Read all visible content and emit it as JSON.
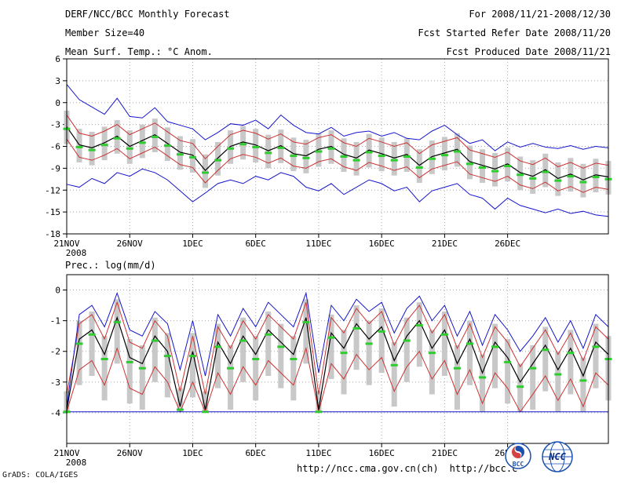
{
  "header": {
    "line1_left": "DERF/NCC/BCC Monthly Forecast",
    "line1_right": "For 2008/11/21-2008/12/30",
    "line2_left": "Member Size=40",
    "line2_right": "Fcst Started Refer Date 2008/11/20",
    "line3_left": "Mean Surf. Temp.: °C Anom.",
    "line3_right": "Fcst Produced Date 2008/11/21"
  },
  "footer": {
    "grads_credit": "GrADS: COLA/IGES",
    "url_ncc": "http://ncc.cma.gov.cn(ch)",
    "url_bcc": "http://bcc.c",
    "bcc_logo_label": "BCC",
    "ncc_logo_label": "NCC"
  },
  "colors": {
    "max_min_line": "#1515cc",
    "quartile_line": "#cc3333",
    "mean_line": "#000000",
    "median_dash": "#2ecc2e",
    "spread_bar": "#c8c8c8",
    "grid": "#a8a8a8",
    "frame": "#000000",
    "logo_blue": "#1a50b0",
    "logo_red": "#cc2222"
  },
  "chart_data": [
    {
      "type": "line",
      "title": "Mean Surf. Temp.: °C Anom.",
      "x_tick_labels": [
        "21NOV",
        "26NOV",
        "1DEC",
        "6DEC",
        "11DEC",
        "16DEC",
        "21DEC",
        "26DEC"
      ],
      "x_tick_days": [
        0,
        5,
        10,
        15,
        20,
        25,
        30,
        35
      ],
      "x_first_sublabel": "2008",
      "n_points": 44,
      "ylim": [
        6,
        -18
      ],
      "yticks": [
        6,
        3,
        0,
        -3,
        -6,
        -9,
        -12,
        -15,
        -18
      ],
      "series": {
        "max": [
          2.5,
          0.4,
          -0.6,
          -1.6,
          0.6,
          -1.9,
          -2.1,
          -0.7,
          -2.6,
          -3.1,
          -3.6,
          -5.1,
          -4.1,
          -2.9,
          -3.1,
          -2.4,
          -3.6,
          -1.7,
          -3.1,
          -4.1,
          -4.3,
          -3.4,
          -4.6,
          -4.1,
          -3.9,
          -4.6,
          -4.1,
          -4.9,
          -5.1,
          -3.9,
          -3.1,
          -4.4,
          -5.6,
          -5.1,
          -6.6,
          -5.4,
          -6.1,
          -5.6,
          -6.1,
          -6.3,
          -5.9,
          -6.4,
          -6.0,
          -6.2
        ],
        "mean": [
          -3.3,
          -5.8,
          -6.2,
          -5.5,
          -4.6,
          -6.0,
          -5.2,
          -4.4,
          -5.6,
          -6.8,
          -7.2,
          -9.3,
          -7.6,
          -6.0,
          -5.4,
          -5.8,
          -6.6,
          -5.9,
          -7.0,
          -7.3,
          -6.4,
          -6.0,
          -7.1,
          -7.6,
          -6.5,
          -7.0,
          -7.6,
          -7.1,
          -8.6,
          -7.4,
          -6.9,
          -6.4,
          -8.1,
          -8.6,
          -9.1,
          -8.4,
          -9.6,
          -10.1,
          -9.2,
          -10.4,
          -9.8,
          -10.6,
          -9.9,
          -10.2
        ],
        "median": [
          -3.6,
          -6.1,
          -6.5,
          -5.8,
          -4.9,
          -6.3,
          -5.5,
          -4.7,
          -5.9,
          -7.1,
          -7.5,
          -9.6,
          -7.9,
          -6.3,
          -5.7,
          -6.1,
          -6.9,
          -6.2,
          -7.3,
          -7.6,
          -6.7,
          -6.3,
          -7.4,
          -7.9,
          -6.8,
          -7.3,
          -7.9,
          -7.4,
          -8.9,
          -7.7,
          -7.2,
          -6.7,
          -8.4,
          -8.9,
          -9.4,
          -8.7,
          -9.9,
          -10.4,
          -9.5,
          -10.7,
          -10.1,
          -10.9,
          -10.2,
          -10.5
        ],
        "min": [
          -11.2,
          -11.6,
          -10.4,
          -11.1,
          -9.6,
          -10.1,
          -9.1,
          -9.6,
          -10.6,
          -12.1,
          -13.6,
          -12.4,
          -11.1,
          -10.6,
          -11.1,
          -10.1,
          -10.6,
          -9.6,
          -10.1,
          -11.6,
          -12.1,
          -11.1,
          -12.6,
          -11.6,
          -10.6,
          -11.1,
          -12.1,
          -11.6,
          -13.6,
          -12.1,
          -11.6,
          -11.1,
          -12.6,
          -13.1,
          -14.6,
          -13.1,
          -14.1,
          -14.6,
          -15.1,
          -14.6,
          -15.2,
          -14.9,
          -15.4,
          -15.6
        ]
      },
      "bands": {
        "p75_offset": 1.6,
        "p25_offset": -1.7,
        "bar_high_offset": 2.2,
        "bar_low_offset": -2.4
      }
    },
    {
      "type": "line",
      "title": "Prec.: log(mm/d)",
      "x_tick_labels": [
        "21NOV",
        "26NOV",
        "1DEC",
        "6DEC",
        "11DEC",
        "16DEC",
        "21DEC",
        "26DEC"
      ],
      "x_tick_days": [
        0,
        5,
        10,
        15,
        20,
        25,
        30,
        35
      ],
      "x_first_sublabel": "2008",
      "n_points": 44,
      "ylim": [
        0.5,
        -5
      ],
      "yticks": [
        0,
        -1,
        -2,
        -3,
        -4
      ],
      "floor": -3.97,
      "series": {
        "max": [
          -3.8,
          -0.8,
          -0.5,
          -1.2,
          -0.1,
          -1.3,
          -1.5,
          -0.7,
          -1.1,
          -2.6,
          -1.0,
          -2.8,
          -0.8,
          -1.5,
          -0.6,
          -1.2,
          -0.4,
          -0.8,
          -1.2,
          -0.1,
          -2.7,
          -0.5,
          -1.0,
          -0.3,
          -0.7,
          -0.4,
          -1.4,
          -0.6,
          -0.2,
          -1.0,
          -0.5,
          -1.5,
          -0.7,
          -1.8,
          -0.8,
          -1.3,
          -2.0,
          -1.5,
          -0.9,
          -1.7,
          -1.0,
          -1.9,
          -0.8,
          -1.2
        ],
        "mean": [
          -3.9,
          -1.6,
          -1.3,
          -2.1,
          -0.9,
          -2.2,
          -2.4,
          -1.5,
          -2.0,
          -3.8,
          -2.0,
          -3.9,
          -1.7,
          -2.4,
          -1.5,
          -2.1,
          -1.3,
          -1.7,
          -2.1,
          -0.9,
          -3.9,
          -1.4,
          -1.9,
          -1.1,
          -1.6,
          -1.2,
          -2.3,
          -1.5,
          -1.0,
          -1.9,
          -1.3,
          -2.4,
          -1.6,
          -2.7,
          -1.7,
          -2.2,
          -3.0,
          -2.4,
          -1.8,
          -2.6,
          -1.9,
          -2.8,
          -1.7,
          -2.1
        ],
        "median": [
          -4.0,
          -1.75,
          -1.45,
          -2.25,
          -1.05,
          -2.35,
          -2.55,
          -1.65,
          -2.15,
          -3.9,
          -2.15,
          -4.0,
          -1.85,
          -2.55,
          -1.65,
          -2.25,
          -1.45,
          -1.85,
          -2.25,
          -1.05,
          -4.0,
          -1.55,
          -2.05,
          -1.25,
          -1.75,
          -1.35,
          -2.45,
          -1.65,
          -1.15,
          -2.05,
          -1.45,
          -2.55,
          -1.75,
          -2.85,
          -1.85,
          -2.35,
          -3.15,
          -2.55,
          -1.95,
          -2.75,
          -2.05,
          -2.95,
          -1.85,
          -2.25
        ],
        "min": -3.97
      },
      "bands": {
        "p75_offset": 0.5,
        "p25_offset": -1.0,
        "bar_high_offset": 0.6,
        "bar_low_offset": -1.5
      }
    }
  ]
}
